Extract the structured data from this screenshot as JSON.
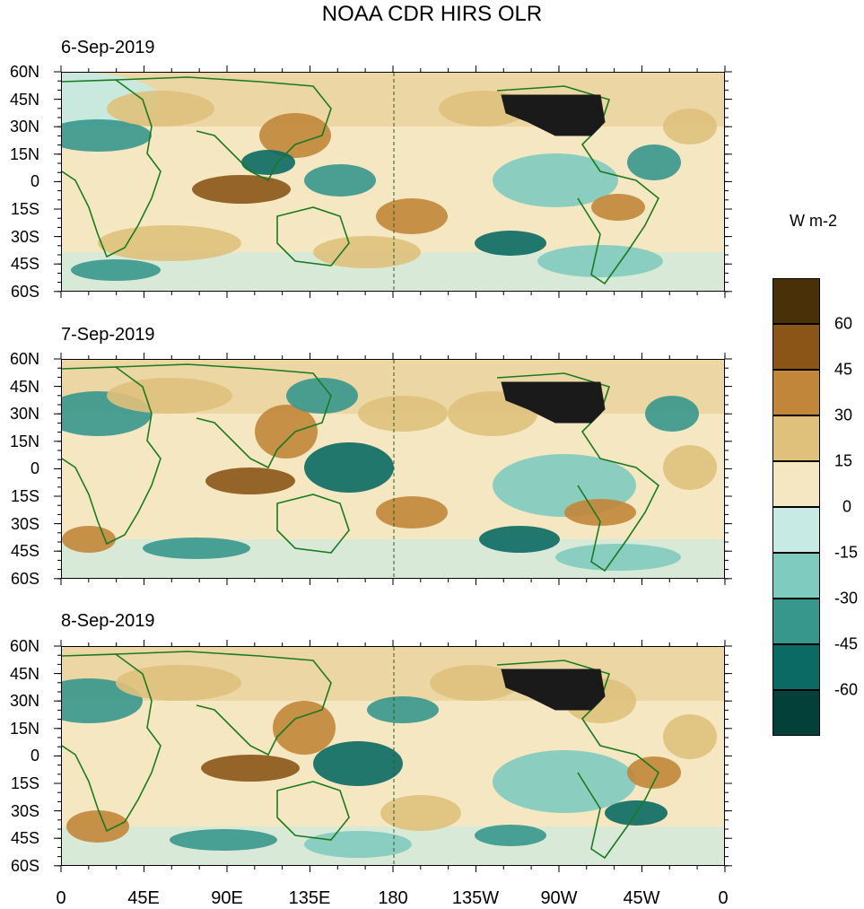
{
  "title": "NOAA CDR HIRS OLR",
  "panels": [
    {
      "date": "6-Sep-2019"
    },
    {
      "date": "7-Sep-2019"
    },
    {
      "date": "8-Sep-2019"
    }
  ],
  "lat_labels": [
    "60N",
    "45N",
    "30N",
    "15N",
    "0",
    "15S",
    "30S",
    "45S",
    "60S"
  ],
  "lon_labels": [
    "0",
    "45E",
    "90E",
    "135E",
    "180",
    "135W",
    "90W",
    "45W",
    "0"
  ],
  "colorbar": {
    "units": "W m-2",
    "tick_labels": [
      "60",
      "45",
      "30",
      "15",
      "0",
      "-15",
      "-30",
      "-45",
      "-60"
    ],
    "colors": [
      "#4a3008",
      "#8a5517",
      "#c2863a",
      "#dfc17c",
      "#f6e7c3",
      "#c7ebe4",
      "#7fcbbf",
      "#37978d",
      "#0b6a64",
      "#03403a"
    ]
  },
  "map_colors": {
    "positive_strong": "#8a5517",
    "positive_mid": "#c2863a",
    "positive_light": "#dfc17c",
    "neutral_pos": "#f6e7c3",
    "neutral_neg": "#c7ebe4",
    "negative_light": "#7fcbbf",
    "negative_mid": "#37978d",
    "negative_strong": "#0b6a64",
    "coast": "#1a7a20",
    "usa_mask": "#1a1a1a"
  }
}
